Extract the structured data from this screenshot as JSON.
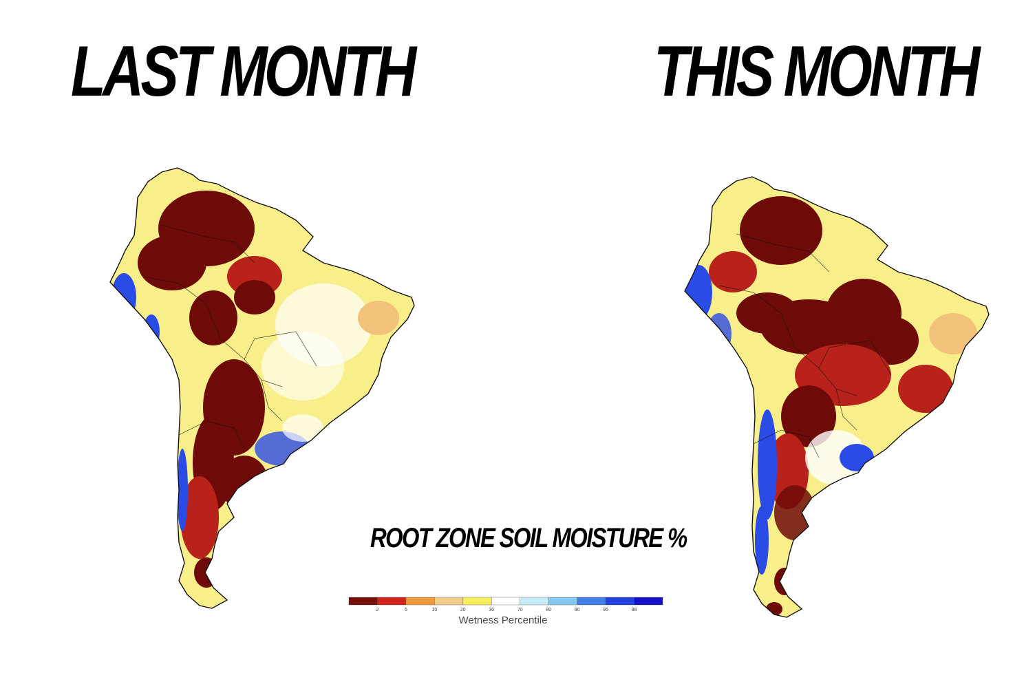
{
  "panels": [
    {
      "title": "LAST MONTH",
      "fill_drought": 0.55
    },
    {
      "title": "THIS MONTH",
      "fill_drought": 0.6
    }
  ],
  "caption": "ROOT ZONE SOIL MOISTURE %",
  "legend": {
    "label": "Wetness Percentile",
    "ticks": [
      "2",
      "5",
      "10",
      "20",
      "30",
      "70",
      "80",
      "90",
      "95",
      "98"
    ],
    "colors": [
      "#7a0e0a",
      "#d3241b",
      "#ec9a3a",
      "#f5cd8a",
      "#f7ee5c",
      "#ffffff",
      "#c6ecf7",
      "#84c8f0",
      "#3f7fe6",
      "#1f3fe0",
      "#1410c8"
    ]
  },
  "colors": {
    "drought_extreme": "#6e0b08",
    "drought_severe": "#b8221a",
    "dry": "#f2c27a",
    "slightly_dry": "#f8ef8a",
    "normal": "#ffffff",
    "wet": "#2a4be6",
    "border": "#111111"
  }
}
